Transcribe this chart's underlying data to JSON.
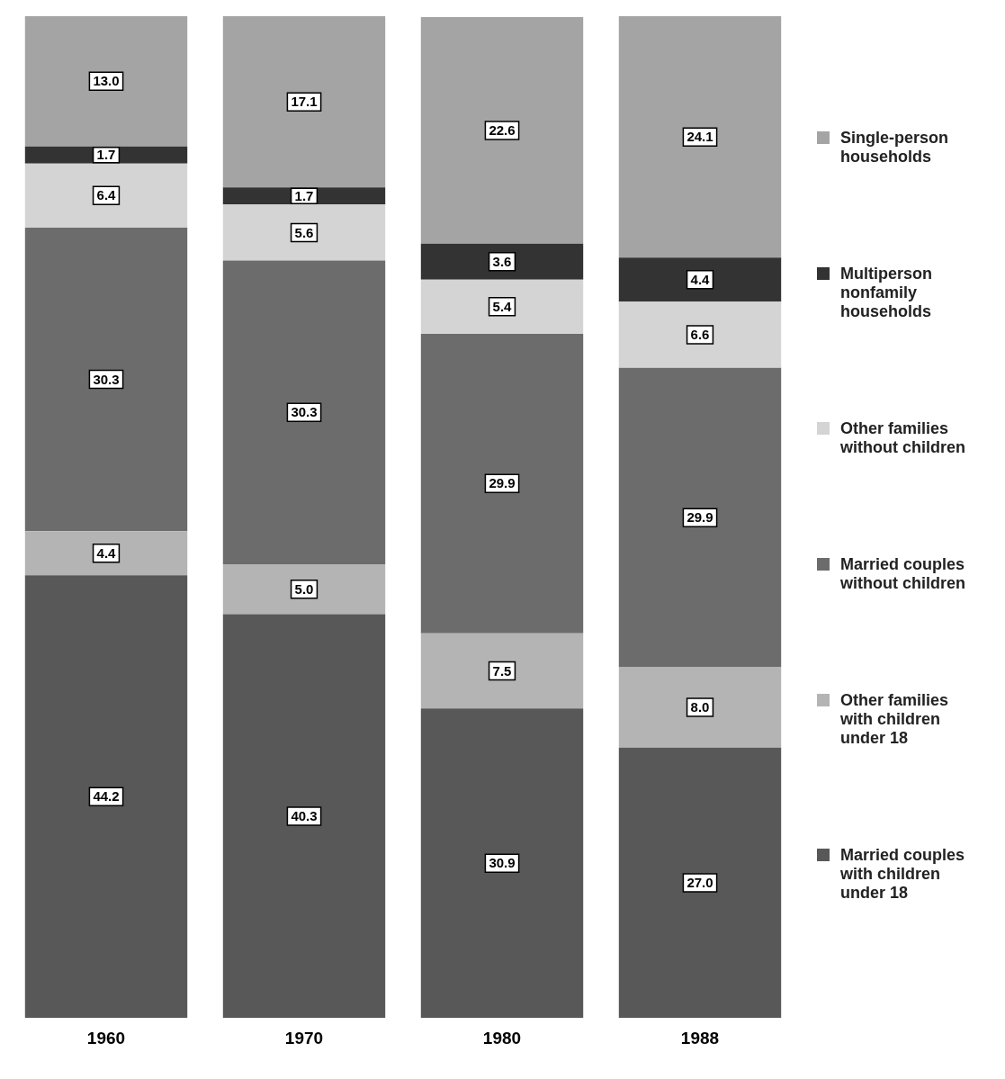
{
  "chart_data": {
    "type": "bar",
    "stacked": true,
    "categories": [
      "1960",
      "1970",
      "1980",
      "1988"
    ],
    "series": [
      {
        "name": "Married couples with children under 18",
        "color": "#585858",
        "values": [
          44.2,
          40.3,
          30.9,
          27.0
        ],
        "value_labels": [
          "44.2",
          "40.3",
          "30.9",
          "27.0"
        ]
      },
      {
        "name": "Other families with children under 18",
        "color": "#b4b4b4",
        "values": [
          4.4,
          5.0,
          7.5,
          8.0
        ],
        "value_labels": [
          "4.4",
          "5.0",
          "7.5",
          "8.0"
        ]
      },
      {
        "name": "Married couples without children",
        "color": "#6c6c6c",
        "values": [
          30.3,
          30.3,
          29.9,
          29.9
        ],
        "value_labels": [
          "30.3",
          "30.3",
          "29.9",
          "29.9"
        ]
      },
      {
        "name": "Other families without children",
        "color": "#d4d4d4",
        "values": [
          6.4,
          5.6,
          5.4,
          6.6
        ],
        "value_labels": [
          "6.4",
          "5.6",
          "5.4",
          "6.6"
        ]
      },
      {
        "name": "Multiperson nonfamily households",
        "color": "#333333",
        "values": [
          1.7,
          1.7,
          3.6,
          4.4
        ],
        "value_labels": [
          "1.7",
          "1.7",
          "3.6",
          "4.4"
        ]
      },
      {
        "name": "Single-person households",
        "color": "#a4a4a4",
        "values": [
          13.0,
          17.1,
          22.6,
          24.1
        ],
        "value_labels": [
          "13.0",
          "17.1",
          "22.6",
          "24.1"
        ]
      }
    ],
    "legend": "right",
    "grid": false,
    "tick_labels": "x"
  }
}
